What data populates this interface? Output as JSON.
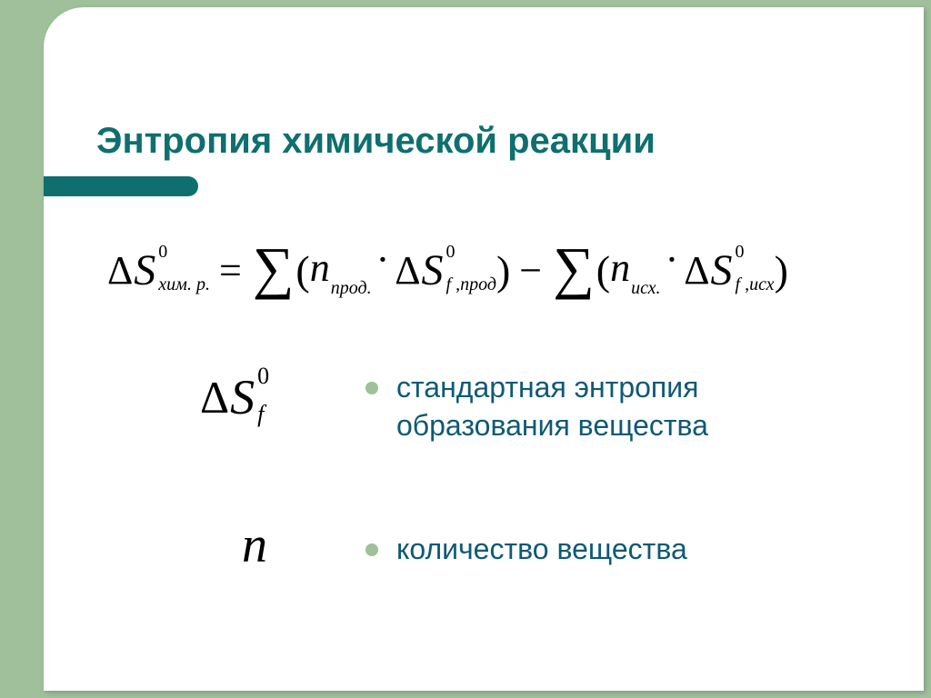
{
  "slide": {
    "background_color": "#9fc09b",
    "card_color": "#ffffff",
    "accent_color": "#0f6f6f",
    "body_text_color": "#0e5976",
    "bullet_color": "#9fc09b",
    "title": "Энтропия химической реакции",
    "title_fontsize": 40,
    "border_radius_tl": 44
  },
  "formula": {
    "lhs": {
      "delta": "Δ",
      "base": "S",
      "sup": "0",
      "sub": "хим. р."
    },
    "eq": "=",
    "sigma": "∑",
    "term1": {
      "open": "(",
      "close": ")",
      "n": {
        "base": "n",
        "sub": "прод."
      },
      "cdot": "·",
      "dS": {
        "delta": "Δ",
        "base": "S",
        "sup": "0",
        "sub": "f ,прод"
      }
    },
    "minus": "−",
    "term2": {
      "open": "(",
      "close": ")",
      "n": {
        "base": "n",
        "sub": "исх."
      },
      "cdot": "·",
      "dS": {
        "delta": "Δ",
        "base": "S",
        "sup": "0",
        "sub": "f ,исх"
      }
    }
  },
  "legend": {
    "item1": {
      "symbol": {
        "delta": "Δ",
        "base": "S",
        "sup": "0",
        "sub": "f"
      },
      "text": "стандартная энтропия образования вещества"
    },
    "item2": {
      "symbol_n": "n",
      "text": "количество вещества"
    }
  }
}
